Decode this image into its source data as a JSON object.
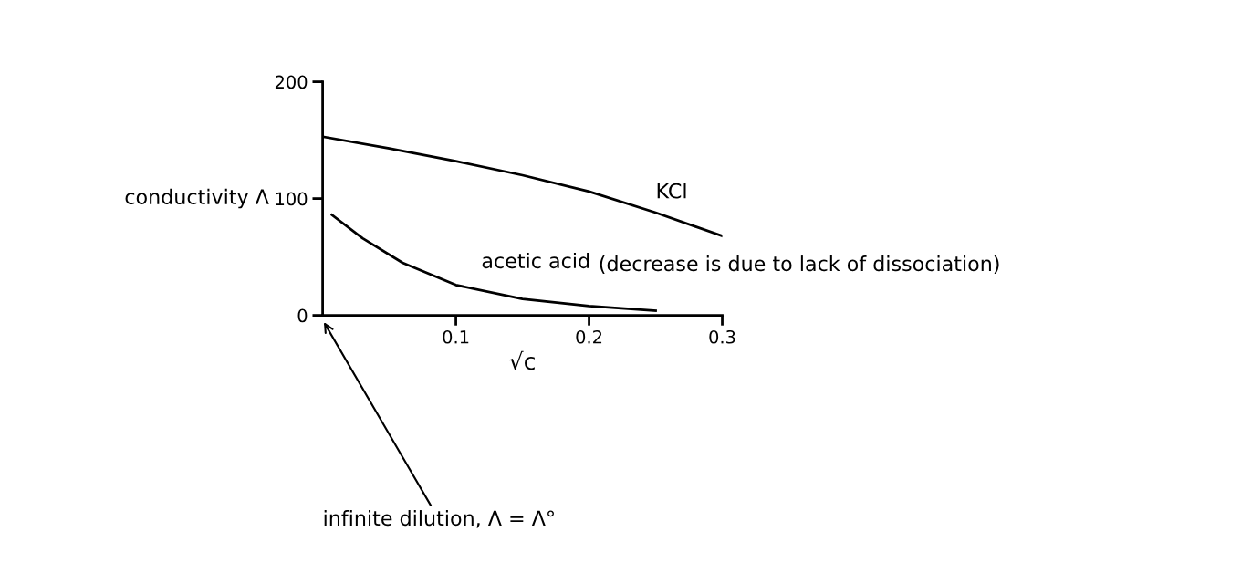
{
  "chart_data": {
    "type": "line",
    "xlabel": "√c",
    "ylabel": "conductivity Λ",
    "xlim": [
      0,
      0.3
    ],
    "ylim": [
      0,
      200
    ],
    "xticks": [
      0.1,
      0.2,
      0.3
    ],
    "yticks": [
      0,
      100,
      200
    ],
    "series": [
      {
        "name": "KCl",
        "color": "#000000",
        "x": [
          0,
          0.05,
          0.1,
          0.15,
          0.2,
          0.25,
          0.3
        ],
        "values": [
          153,
          143,
          132,
          120,
          106,
          88,
          68
        ]
      },
      {
        "name": "acetic acid",
        "color": "#000000",
        "x": [
          0.007,
          0.03,
          0.06,
          0.1,
          0.15,
          0.2,
          0.25
        ],
        "values": [
          86,
          66,
          45,
          26,
          14,
          8,
          4
        ]
      }
    ],
    "annotations": [
      "(decrease is due to lack of dissociation)",
      "infinite dilution, Λ = Λ°"
    ],
    "grid": false,
    "legend": false,
    "marker": "none",
    "line_style": "solid"
  }
}
